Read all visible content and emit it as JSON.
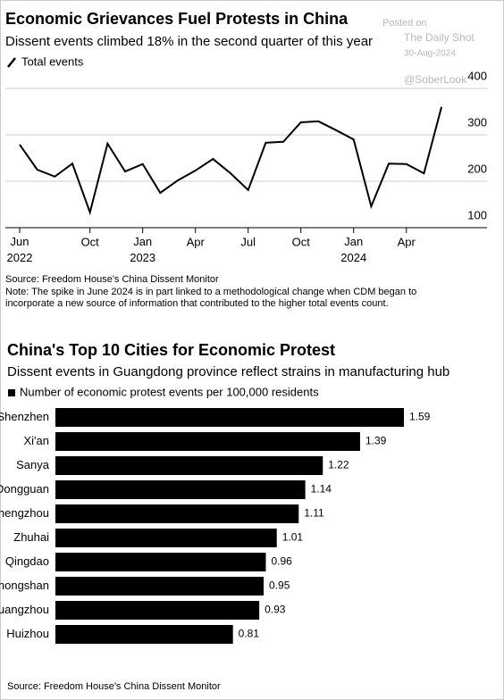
{
  "chart_data": [
    {
      "type": "line",
      "title": "Economic Grievances Fuel Protests in China",
      "subtitle": "Dissent events climbed 18% in the second quarter of this year",
      "categories": [
        "Jun 2022",
        null,
        null,
        null,
        "Oct",
        null,
        null,
        "Jan 2023",
        null,
        null,
        "Apr",
        null,
        null,
        "Jul",
        null,
        null,
        "Oct",
        null,
        null,
        "Jan 2024",
        null,
        null,
        "Apr",
        null,
        null
      ],
      "series": [
        {
          "name": "Total events",
          "color": "#000000",
          "values": [
            279,
            225,
            210,
            238,
            133,
            281,
            221,
            237,
            175,
            202,
            223,
            248,
            217,
            181,
            283,
            285,
            327,
            329,
            310,
            290,
            146,
            238,
            237,
            217,
            360
          ]
        }
      ],
      "ylim": [
        100,
        410
      ],
      "yticks": [
        100,
        200,
        300,
        400
      ],
      "grid": true,
      "source": "Source: Freedom House's China Dissent Monitor",
      "note": [
        "Note: The spike in June 2024 is in part linked to a methodological change when CDM began to",
        "incorporate a new source of information that contributed to the higher total events count."
      ]
    },
    {
      "type": "hbar",
      "title": "China's Top 10 Cities for Economic Protest",
      "subtitle": "Dissent events in Guangdong province reflect strains in manufacturing hub",
      "categories": [
        "Shenzhen",
        "Xi'an",
        "Sanya",
        "Dongguan",
        "Zhengzhou",
        "Zhuhai",
        "Qingdao",
        "Zhongshan",
        "Guangzhou",
        "Huizhou"
      ],
      "series": [
        {
          "name": "Number of economic protest events per 100,000 residents",
          "color": "#000000",
          "values": [
            1.59,
            1.39,
            1.22,
            1.14,
            1.11,
            1.01,
            0.96,
            0.95,
            0.93,
            0.81
          ]
        }
      ],
      "source": "Source: Freedom House's China Dissent Monitor"
    }
  ],
  "watermark": [
    "Posted on",
    "The Daily Shot",
    "30-Aug-2024",
    "@SoberLook"
  ]
}
